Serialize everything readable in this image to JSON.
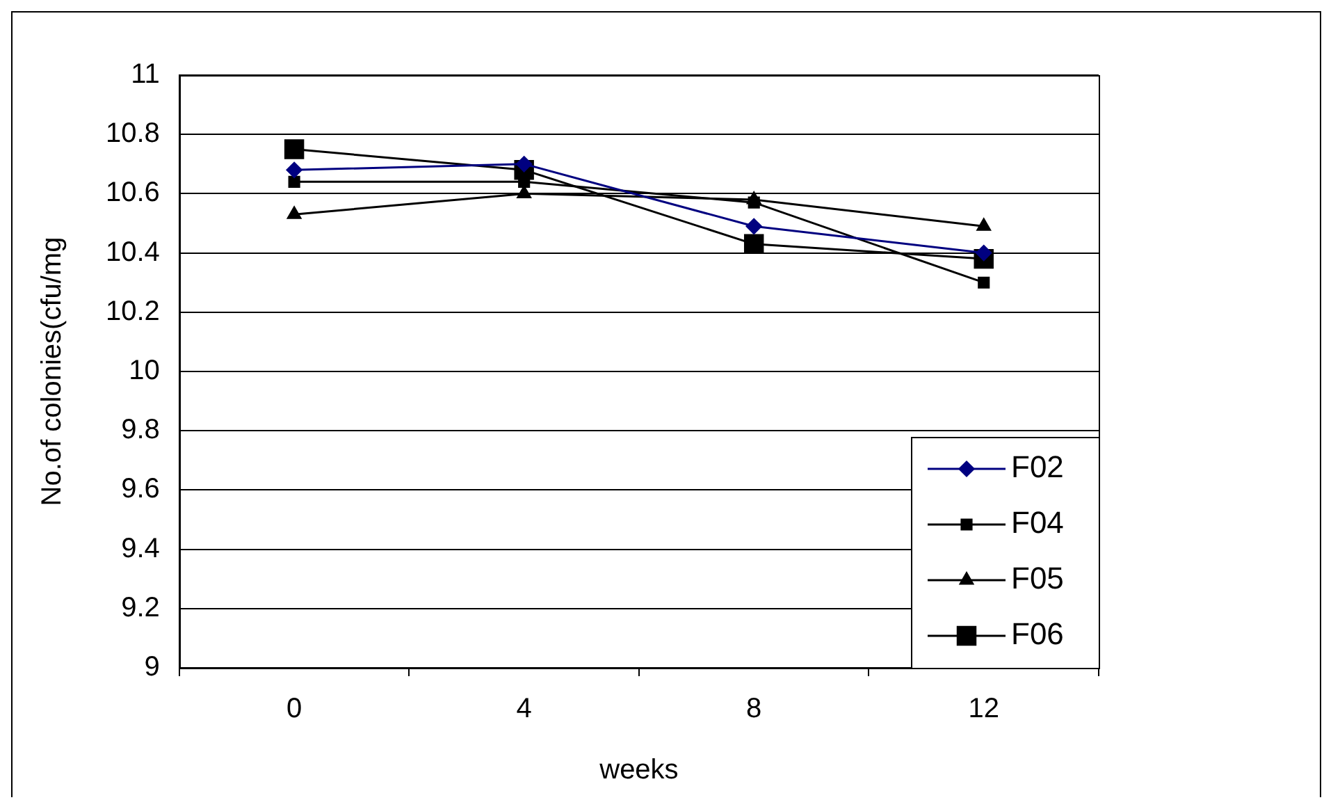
{
  "chart_data": {
    "type": "line",
    "xlabel": "weeks",
    "ylabel": "No.of colonies(cfu/mg",
    "categories": [
      "0",
      "4",
      "8",
      "12"
    ],
    "series": [
      {
        "name": "F02",
        "color": "#000080",
        "marker": "diamond",
        "values": [
          10.68,
          10.7,
          10.49,
          10.4
        ]
      },
      {
        "name": "F04",
        "color": "#000000",
        "marker": "square",
        "values": [
          10.64,
          10.64,
          10.57,
          10.3
        ]
      },
      {
        "name": "F05",
        "color": "#000000",
        "marker": "triangle",
        "values": [
          10.53,
          10.6,
          10.58,
          10.49
        ]
      },
      {
        "name": "F06",
        "color": "#000000",
        "marker": "square",
        "values": [
          10.75,
          10.68,
          10.43,
          10.38
        ]
      }
    ],
    "ylim": [
      9,
      11
    ],
    "yticks": [
      9,
      9.2,
      9.4,
      9.6,
      9.8,
      10,
      10.2,
      10.4,
      10.6,
      10.8,
      11
    ],
    "grid": "y",
    "legend": "bottom right",
    "line_style": "solid"
  }
}
